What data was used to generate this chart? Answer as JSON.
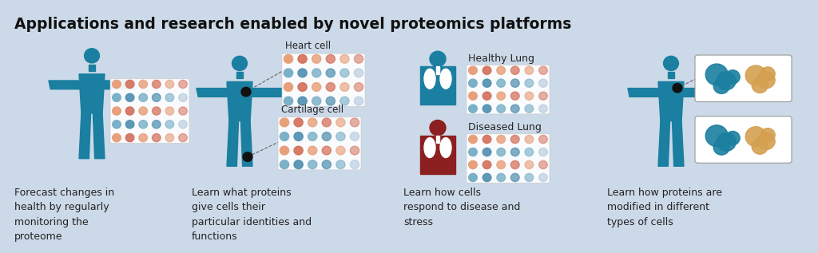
{
  "title": "Applications and research enabled by novel proteomics platforms",
  "background_color": "#ccd9e8",
  "title_fontsize": 13.5,
  "body_color": "#1a7fa0",
  "dark_red": "#8c2020",
  "panel_texts": [
    "Forecast changes in\nhealth by regularly\nmonitoring the\nproteome",
    "Learn what proteins\ngive cells their\nparticular identities and\nfunctions",
    "Learn how cells\nrespond to disease and\nstress",
    "Learn how proteins are\nmodified in different\ntypes of cells"
  ],
  "dot_warm1": "#e8a07a",
  "dot_warm2": "#d4705a",
  "dot_cool1": "#7ab0c8",
  "dot_cool2": "#5090b0",
  "dot_neutral": "#a8c4d8"
}
